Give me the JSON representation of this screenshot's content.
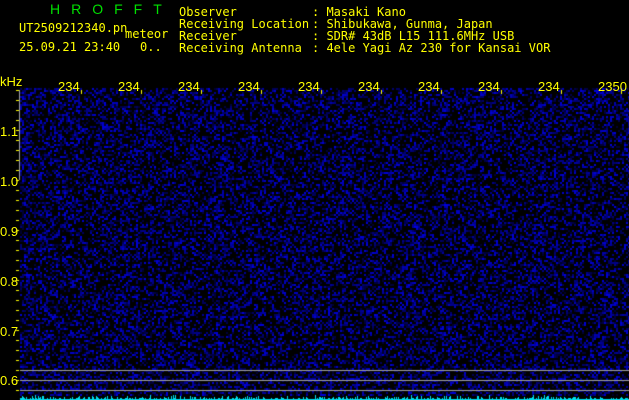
{
  "header": {
    "title": "HROFFT",
    "filename": "UT2509212340.pn",
    "mode": "meteor",
    "datetime": "25.09.21 23:40",
    "counter": "0..",
    "info_labels": [
      "Observer",
      "Receiving Location",
      "Receiver",
      "Receiving Antenna"
    ],
    "info_values": [
      "Masaki Kano",
      "Shibukawa, Gunma, Japan",
      "SDR# 43dB L15 111.6MHz USB",
      "4ele Yagi Az 230 for Kansai VOR"
    ]
  },
  "axes": {
    "y_unit": "kHz",
    "x_ticks": [
      "2341",
      "2342",
      "2343",
      "2344",
      "2345",
      "2346",
      "2347",
      "2348",
      "2349",
      "2350"
    ],
    "y_ticks": [
      "1.1",
      "1.0",
      "0.9",
      "0.8",
      "0.7",
      "0.6"
    ]
  },
  "colors": {
    "text": "#ffff00",
    "title": "#00e000",
    "noise": "#2020ff",
    "spectrum": "#00e0f0",
    "marker_lines": "#a0a0a0"
  }
}
